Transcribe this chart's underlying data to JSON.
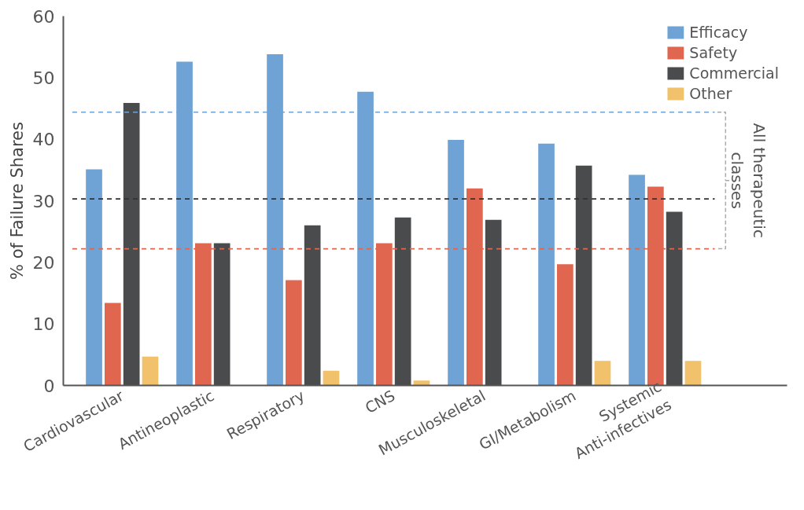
{
  "chart_data": {
    "type": "bar",
    "ylabel": "% of Failure Shares",
    "categories": [
      "Cardiovascular",
      "Antineoplastic",
      "Respiratory",
      "CNS",
      "Musculoskeletal",
      "GI/Metabolism",
      "Systemic\nAnti-infectives"
    ],
    "series": [
      {
        "name": "Efficacy",
        "color": "#6fa3d5",
        "values": [
          35.1,
          52.6,
          53.8,
          47.7,
          39.9,
          39.3,
          34.2
        ]
      },
      {
        "name": "Safety",
        "color": "#e06650",
        "values": [
          13.4,
          23.1,
          17.1,
          23.1,
          32.0,
          19.7,
          32.3
        ]
      },
      {
        "name": "Commercial",
        "color": "#4a4b4d",
        "values": [
          45.9,
          23.1,
          26.0,
          27.3,
          26.9,
          35.7,
          28.2
        ]
      },
      {
        "name": "Other",
        "color": "#f2c16c",
        "values": [
          4.7,
          null,
          2.4,
          0.8,
          null,
          4.0,
          4.0
        ]
      }
    ],
    "ylim": [
      0,
      60
    ],
    "yticks": [
      0,
      10,
      20,
      30,
      40,
      50,
      60
    ],
    "ref_lines": [
      {
        "axis": "y",
        "value": 44.4,
        "color": "#6fa3d5",
        "line_style": "dashed"
      },
      {
        "axis": "y",
        "value": 30.3,
        "color": "#333333",
        "line_style": "dashed"
      },
      {
        "axis": "y",
        "value": 22.2,
        "color": "#e06650",
        "line_style": "dashed"
      }
    ],
    "annotations": [
      "All therapeutic\nclasses"
    ],
    "grid": false,
    "legend": "top right"
  }
}
